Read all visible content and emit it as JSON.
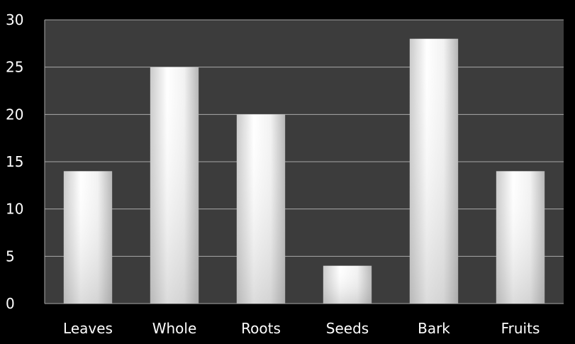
{
  "chart_data": {
    "type": "bar",
    "categories": [
      "Leaves",
      "Whole",
      "Roots",
      "Seeds",
      "Bark",
      "Fruits"
    ],
    "values": [
      14,
      25,
      20,
      4,
      28,
      14
    ],
    "yticks": [
      "0",
      "5",
      "10",
      "15",
      "20",
      "25",
      "30"
    ],
    "ylim": [
      0,
      30
    ],
    "grid": true,
    "legend": "none",
    "title": "",
    "xlabel": "",
    "ylabel": ""
  },
  "colors": {
    "background": "#000000",
    "plot_area": "#3c3c3c",
    "grid": "#a9a9a9",
    "bar_light": "#ffffff",
    "bar_dark": "#bdbdbd",
    "text": "#ffffff"
  }
}
